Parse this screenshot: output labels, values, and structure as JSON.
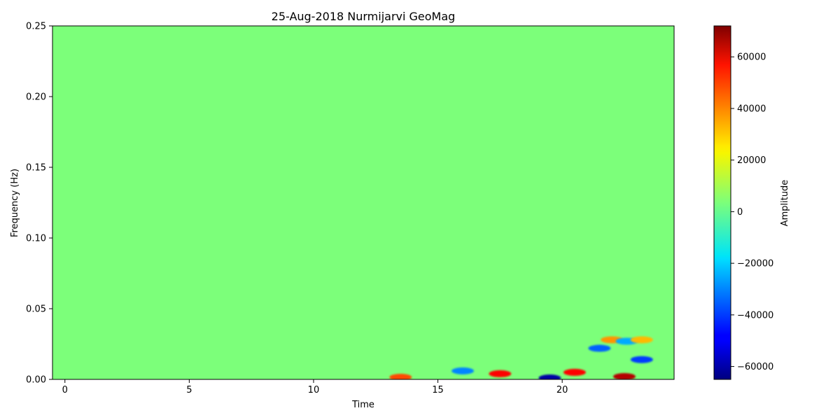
{
  "chart_data": {
    "type": "heatmap",
    "title": "25-Aug-2018 Nurmijarvi GeoMag",
    "xlabel": "Time",
    "ylabel": "Frequency (Hz)",
    "xlim": [
      -0.5,
      24.5
    ],
    "ylim": [
      0,
      0.25
    ],
    "x_ticks": [
      0,
      5,
      10,
      15,
      20
    ],
    "y_ticks": [
      0.0,
      0.05,
      0.1,
      0.15,
      0.2,
      0.25
    ],
    "y_tick_labels": [
      "0.00",
      "0.05",
      "0.10",
      "0.15",
      "0.20",
      "0.25"
    ],
    "colormap": "jet",
    "colorbar": {
      "label": "Amplitude",
      "vmin": -65000,
      "vmax": 72000,
      "ticks": [
        -60000,
        -40000,
        -20000,
        0,
        20000,
        40000,
        60000
      ],
      "tick_labels": [
        "−60000",
        "−40000",
        "−20000",
        "0",
        "20000",
        "40000",
        "60000"
      ]
    },
    "features": [
      {
        "x": 13.5,
        "y": 0.0015,
        "value": 45000
      },
      {
        "x": 16.0,
        "y": 0.006,
        "value": -30000
      },
      {
        "x": 17.5,
        "y": 0.004,
        "value": 55000
      },
      {
        "x": 19.5,
        "y": 0.001,
        "value": -60000
      },
      {
        "x": 20.5,
        "y": 0.005,
        "value": 55000
      },
      {
        "x": 21.5,
        "y": 0.022,
        "value": -35000
      },
      {
        "x": 22.0,
        "y": 0.028,
        "value": 35000
      },
      {
        "x": 22.5,
        "y": 0.002,
        "value": 65000
      },
      {
        "x": 22.6,
        "y": 0.027,
        "value": -25000
      },
      {
        "x": 23.2,
        "y": 0.028,
        "value": 30000
      },
      {
        "x": 23.2,
        "y": 0.014,
        "value": -40000
      }
    ]
  }
}
